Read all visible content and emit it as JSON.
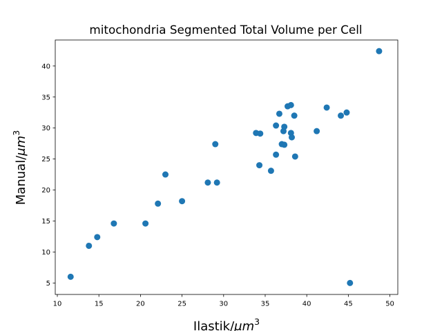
{
  "chart_data": {
    "type": "scatter",
    "title": "mitochondria Segmented Total Volume per Cell",
    "xlabel": "Ilastik/μm³",
    "ylabel": "Manual/μm³",
    "xlabel_parts": {
      "text": "Ilastik/",
      "unit": "μm",
      "exponent": "3"
    },
    "ylabel_parts": {
      "text": "Manual/",
      "unit": "μm",
      "exponent": "3"
    },
    "xlim": [
      9.75,
      50.95
    ],
    "ylim": [
      3.15,
      44.2
    ],
    "xticks": [
      10,
      15,
      20,
      25,
      30,
      35,
      40,
      45,
      50
    ],
    "yticks": [
      5,
      10,
      15,
      20,
      25,
      30,
      35,
      40
    ],
    "grid": false,
    "legend": false,
    "marker_color": "#1f77b4",
    "points": [
      {
        "x": 11.6,
        "y": 6.0
      },
      {
        "x": 13.8,
        "y": 11.0
      },
      {
        "x": 14.8,
        "y": 12.4
      },
      {
        "x": 16.8,
        "y": 14.6
      },
      {
        "x": 20.6,
        "y": 14.6
      },
      {
        "x": 22.1,
        "y": 17.8
      },
      {
        "x": 23.0,
        "y": 22.5
      },
      {
        "x": 25.0,
        "y": 18.2
      },
      {
        "x": 28.1,
        "y": 21.2
      },
      {
        "x": 29.0,
        "y": 27.4
      },
      {
        "x": 29.2,
        "y": 21.2
      },
      {
        "x": 33.9,
        "y": 29.2
      },
      {
        "x": 34.3,
        "y": 24.0
      },
      {
        "x": 34.4,
        "y": 29.1
      },
      {
        "x": 35.7,
        "y": 23.1
      },
      {
        "x": 36.3,
        "y": 25.7
      },
      {
        "x": 36.3,
        "y": 30.4
      },
      {
        "x": 36.7,
        "y": 32.3
      },
      {
        "x": 37.0,
        "y": 27.4
      },
      {
        "x": 37.2,
        "y": 29.5
      },
      {
        "x": 37.3,
        "y": 30.2
      },
      {
        "x": 37.3,
        "y": 27.3
      },
      {
        "x": 37.7,
        "y": 33.5
      },
      {
        "x": 38.1,
        "y": 33.7
      },
      {
        "x": 38.1,
        "y": 29.2
      },
      {
        "x": 38.2,
        "y": 28.5
      },
      {
        "x": 38.5,
        "y": 32.0
      },
      {
        "x": 38.6,
        "y": 25.4
      },
      {
        "x": 41.2,
        "y": 29.5
      },
      {
        "x": 42.4,
        "y": 33.3
      },
      {
        "x": 44.1,
        "y": 32.0
      },
      {
        "x": 44.8,
        "y": 32.5
      },
      {
        "x": 45.2,
        "y": 5.0
      },
      {
        "x": 48.7,
        "y": 42.4
      }
    ]
  }
}
